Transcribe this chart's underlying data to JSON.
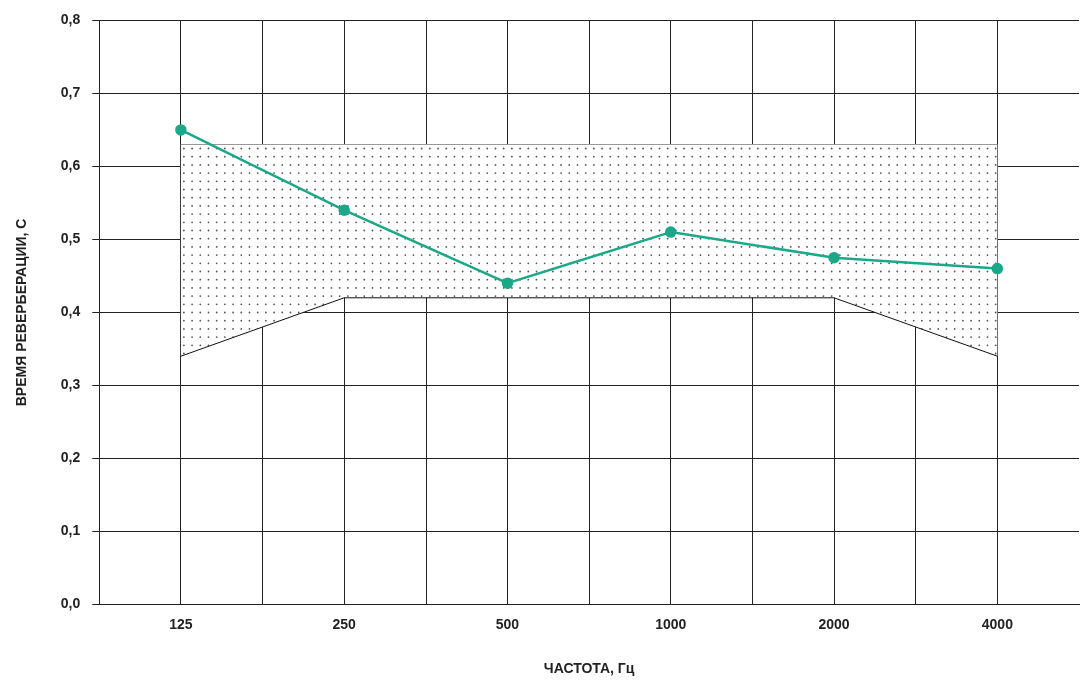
{
  "chart_data": {
    "type": "line",
    "xlabel": "ЧАСТОТА, Гц",
    "ylabel": "ВРЕМЯ РЕВЕРБЕРАЦИИ, С",
    "x": [
      125,
      250,
      500,
      1000,
      2000,
      4000
    ],
    "series": [
      {
        "color": "#1aa888",
        "values": [
          0.65,
          0.54,
          0.44,
          0.51,
          0.475,
          0.46
        ],
        "lower": [
          0.34,
          0.42,
          0.42,
          0.42,
          0.42,
          0.34
        ],
        "upper": [
          0.63,
          0.63,
          0.63,
          0.63,
          0.63,
          0.63
        ]
      },
      {
        "color": "#111111",
        "marker": "none",
        "values": [
          0.34,
          0.42,
          0.42,
          0.42,
          0.42,
          0.34
        ]
      },
      {
        "color": "#999999",
        "marker": "none",
        "values": [
          0.63,
          0.63,
          0.63,
          0.63,
          0.63,
          0.63
        ]
      }
    ],
    "log": "x",
    "xlim": [
      88.4,
      5657
    ],
    "xticks": [
      125,
      {
        "value": 177,
        "label": null
      },
      250,
      {
        "value": 354,
        "label": null
      },
      500,
      {
        "value": 707,
        "label": null
      },
      1000,
      {
        "value": 1414,
        "label": null
      },
      2000,
      {
        "value": 2828,
        "label": null
      },
      4000
    ],
    "ylim": [
      0,
      0.8
    ],
    "yticks": [
      {
        "value": 0,
        "label": "0,0"
      },
      {
        "value": 0.1,
        "label": "0,1"
      },
      {
        "value": 0.2,
        "label": "0,2"
      },
      {
        "value": 0.3,
        "label": "0,3"
      },
      {
        "value": 0.4,
        "label": "0,4"
      },
      {
        "value": 0.5,
        "label": "0,5"
      },
      {
        "value": 0.6,
        "label": "0,6"
      },
      {
        "value": 0.7,
        "label": "0,7"
      },
      {
        "value": 0.8,
        "label": "0,8"
      }
    ],
    "grid": true,
    "legend": false,
    "marker": "circle",
    "line_style": "solid"
  }
}
